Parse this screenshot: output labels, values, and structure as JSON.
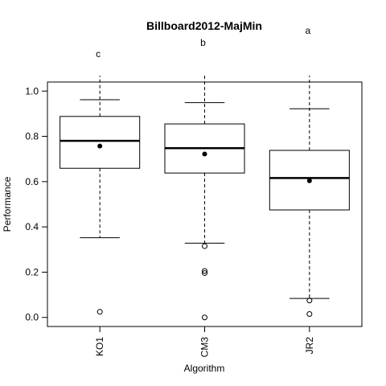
{
  "chart_data": {
    "type": "boxplot",
    "title": "Billboard2012-MajMin",
    "xlabel": "Algorithm",
    "ylabel": "Performance",
    "ylim": [
      -0.04,
      1.04
    ],
    "yticks": [
      "0.0",
      "0.2",
      "0.4",
      "0.6",
      "0.8",
      "1.0"
    ],
    "grid": false,
    "categories": [
      "KO1",
      "CM3",
      "JR2"
    ],
    "boxes": [
      {
        "name": "KO1",
        "letter": "c",
        "whisker_low": 0.352,
        "q1": 0.659,
        "median": 0.78,
        "q3": 0.888,
        "whisker_high": 0.962,
        "mean": 0.757,
        "outliers": [
          0.025
        ]
      },
      {
        "name": "CM3",
        "letter": "b",
        "whisker_low": 0.328,
        "q1": 0.638,
        "median": 0.748,
        "q3": 0.855,
        "whisker_high": 0.949,
        "mean": 0.722,
        "outliers": [
          0.315,
          0.205,
          0.196,
          0.0
        ]
      },
      {
        "name": "JR2",
        "letter": "a",
        "whisker_low": 0.084,
        "q1": 0.475,
        "median": 0.616,
        "q3": 0.738,
        "whisker_high": 0.922,
        "mean": 0.604,
        "outliers": [
          0.075,
          0.015
        ]
      }
    ]
  }
}
